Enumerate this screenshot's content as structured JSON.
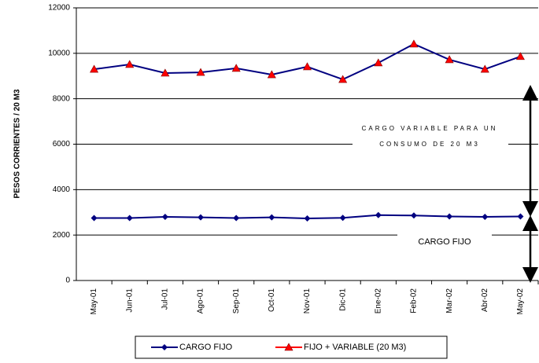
{
  "chart_data": {
    "type": "line",
    "y_label": "PESOS CORRIENTES / 20 M3",
    "categories": [
      "May-01",
      "Jun-01",
      "Jul-01",
      "Ago-01",
      "Sep-01",
      "Oct-01",
      "Nov-01",
      "Dic-01",
      "Ene-02",
      "Feb-02",
      "Mar-02",
      "Abr-02",
      "May-02"
    ],
    "series": [
      {
        "name": "CARGO FIJO",
        "color": "#000080",
        "line_color": "#000080",
        "marker": "diamond",
        "values": [
          2750,
          2750,
          2800,
          2780,
          2750,
          2780,
          2730,
          2760,
          2880,
          2860,
          2820,
          2800,
          2820
        ]
      },
      {
        "name": "FIJO + VARIABLE (20 M3)",
        "color": "#ff0000",
        "line_color": "#000080",
        "marker": "triangle",
        "values": [
          9300,
          9510,
          9130,
          9160,
          9340,
          9060,
          9410,
          8850,
          9580,
          10410,
          9720,
          9300,
          9860
        ]
      }
    ],
    "annotations": [
      "CARGO VARIABLE PARA UN",
      "CONSUMO DE 20 M3",
      "CARGO FIJO"
    ],
    "ylim": [
      0,
      12000
    ],
    "yticks": [
      0,
      2000,
      4000,
      6000,
      8000,
      10000,
      12000
    ],
    "grid": true
  }
}
